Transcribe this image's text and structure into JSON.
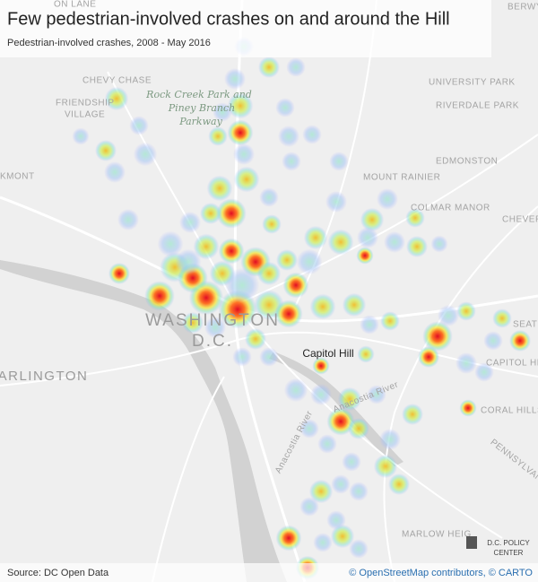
{
  "header": {
    "title": "Few pedestrian-involved crashes on and around the Hill",
    "subtitle": "Pedestrian-involved crashes, 2008 - May 2016"
  },
  "map": {
    "labels": [
      "ON LANE",
      "BERWYN",
      "CHEVY CHASE",
      "FRIENDSHIP",
      "VILLAGE",
      "Rock Creek Park and",
      "Piney Branch",
      "Parkway",
      "UNIVERSITY PARK",
      "RIVERDALE PARK",
      "EDMONSTON",
      "MOUNT RAINIER",
      "KMONT",
      "COLMAR MANOR",
      "CHEVER",
      "WASHINGTON",
      "D.C.",
      "ARLINGTON",
      "Capitol Hill",
      "Anacostia River",
      "Anacostia River",
      "SEAT",
      "CAPITOL HE",
      "CORAL HILLS",
      "PENNSYLVANIA AVE",
      "MARLOW HEIG"
    ]
  },
  "logo": {
    "line1": "D.C. POLICY",
    "line2": "CENTER"
  },
  "footer": {
    "source": "Source: DC Open Data",
    "attribution": "© OpenStreetMap contributors, © CARTO"
  }
}
